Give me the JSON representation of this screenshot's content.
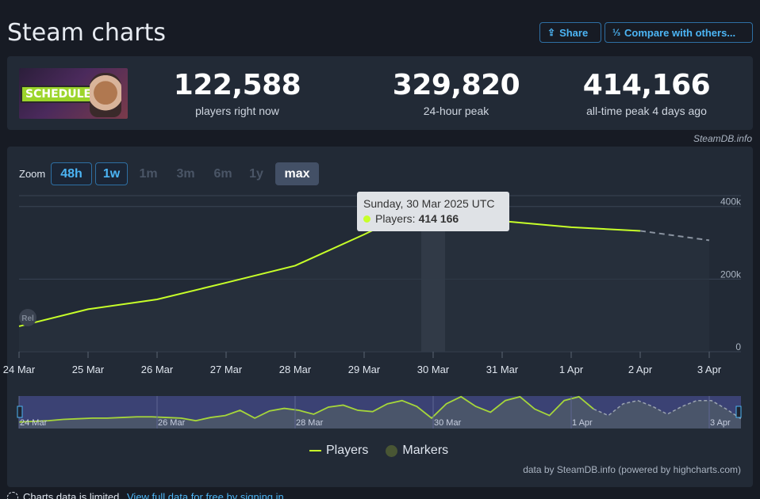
{
  "header": {
    "title": "Steam charts",
    "share_label": "Share",
    "compare_label": "Compare with others..."
  },
  "game": {
    "thumb_text": "SCHEDULE I"
  },
  "stats": [
    {
      "value": "122,588",
      "label": "players right now"
    },
    {
      "value": "329,820",
      "label": "24-hour peak"
    },
    {
      "value": "414,166",
      "label": "all-time peak 4 days ago"
    }
  ],
  "credit_top": "SteamDB.info",
  "zoom": {
    "label": "Zoom",
    "buttons": [
      {
        "label": "48h",
        "state": "enabled"
      },
      {
        "label": "1w",
        "state": "enabled"
      },
      {
        "label": "1m",
        "state": "disabled"
      },
      {
        "label": "3m",
        "state": "disabled"
      },
      {
        "label": "6m",
        "state": "disabled"
      },
      {
        "label": "1y",
        "state": "disabled"
      },
      {
        "label": "max",
        "state": "selected"
      }
    ]
  },
  "tooltip": {
    "date": "Sunday, 30 Mar 2025 UTC",
    "series": "Players:",
    "value": "414 166"
  },
  "legend": {
    "players": "Players",
    "markers": "Markers"
  },
  "credit_bottom": "data by SteamDB.info (powered by highcharts.com)",
  "footer": {
    "limited_text": "Charts data is limited.",
    "link_text": "View full data for free by signing in"
  },
  "colors": {
    "series": "#c7ff29",
    "accent": "#4cb5f5",
    "panel": "#222a36",
    "page": "#171b24"
  },
  "chart_data": {
    "type": "line",
    "title": "",
    "x": [
      "24 Mar",
      "25 Mar",
      "26 Mar",
      "27 Mar",
      "28 Mar",
      "29 Mar",
      "30 Mar",
      "31 Mar",
      "1 Apr",
      "2 Apr",
      "3 Apr"
    ],
    "series": [
      {
        "name": "Players",
        "values": [
          70000,
          117000,
          144000,
          190000,
          237000,
          323000,
          414166,
          360000,
          343000,
          333000,
          307000
        ]
      }
    ],
    "projected_from_index": 9,
    "ylim": [
      0,
      430000
    ],
    "yticks": [
      {
        "value": 0,
        "label": "0"
      },
      {
        "value": 200000,
        "label": "200k"
      },
      {
        "value": 400000,
        "label": "400k"
      }
    ],
    "rel_marker": "Rel",
    "navigator": {
      "labels": [
        "24 Mar",
        "26 Mar",
        "28 Mar",
        "30 Mar",
        "1 Apr",
        "3 Apr"
      ],
      "values": [
        10,
        11,
        12,
        14,
        15,
        16,
        16,
        17,
        18,
        18,
        17,
        16,
        12,
        17,
        20,
        28,
        16,
        27,
        31,
        28,
        22,
        33,
        36,
        28,
        26,
        38,
        43,
        34,
        16,
        38,
        49,
        34,
        25,
        43,
        49,
        30,
        20,
        43,
        49,
        30,
        20,
        38,
        43,
        34,
        22,
        34,
        43,
        43,
        30,
        15
      ]
    },
    "legend_position": "bottom-center",
    "grid": true
  }
}
